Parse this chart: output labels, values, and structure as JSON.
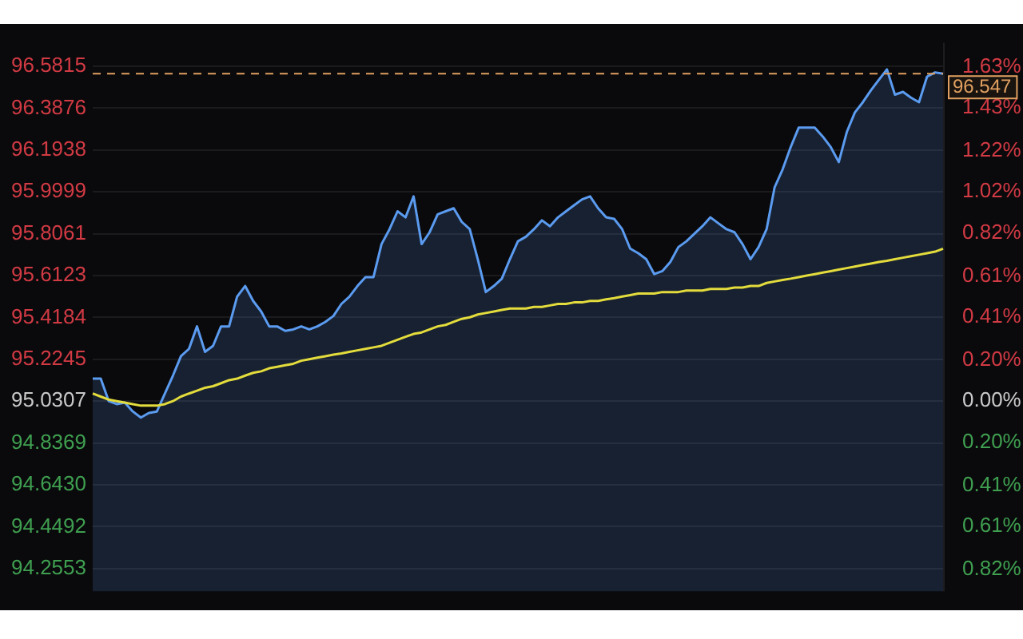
{
  "chart_data": {
    "type": "line",
    "categories": [
      null,
      null,
      null,
      null,
      null,
      null,
      null,
      null,
      null,
      null,
      null,
      null,
      null,
      null,
      null,
      null,
      null,
      null,
      null,
      null,
      null,
      null,
      null,
      null,
      null,
      null,
      null,
      null,
      null,
      null,
      null,
      null,
      null,
      null,
      null,
      null,
      null,
      null,
      null,
      null,
      null,
      null,
      null,
      null,
      null,
      null,
      null,
      null,
      null,
      null,
      null,
      null,
      null,
      null,
      null,
      null,
      null,
      null,
      null,
      null,
      null,
      null,
      null,
      null,
      null,
      null,
      null,
      null,
      null,
      null,
      null,
      null,
      null,
      null,
      null,
      null,
      null,
      null,
      null,
      null,
      null,
      null,
      null,
      null,
      null,
      null,
      null,
      null,
      null,
      null,
      null,
      null,
      null,
      null,
      null,
      null,
      null,
      null,
      null,
      null,
      null,
      null,
      null,
      null,
      null,
      null,
      null
    ],
    "series": [
      {
        "type": "area",
        "color": "#5b9bf0",
        "values": [
          95.135,
          95.135,
          95.031,
          95.017,
          95.024,
          94.983,
          94.955,
          94.976,
          94.983,
          95.066,
          95.149,
          95.239,
          95.273,
          95.377,
          95.259,
          95.287,
          95.377,
          95.377,
          95.515,
          95.564,
          95.495,
          95.446,
          95.377,
          95.377,
          95.356,
          95.363,
          95.377,
          95.363,
          95.377,
          95.398,
          95.425,
          95.481,
          95.515,
          95.564,
          95.605,
          95.605,
          95.758,
          95.827,
          95.91,
          95.882,
          95.979,
          95.758,
          95.813,
          95.896,
          95.91,
          95.924,
          95.861,
          95.827,
          95.688,
          95.536,
          95.564,
          95.598,
          95.688,
          95.771,
          95.792,
          95.827,
          95.868,
          95.841,
          95.882,
          95.91,
          95.938,
          95.965,
          95.979,
          95.924,
          95.882,
          95.875,
          95.827,
          95.737,
          95.716,
          95.688,
          95.619,
          95.633,
          95.675,
          95.744,
          95.771,
          95.806,
          95.841,
          95.882,
          95.854,
          95.827,
          95.813,
          95.758,
          95.688,
          95.744,
          95.827,
          96.021,
          96.104,
          96.207,
          96.297,
          96.297,
          96.297,
          96.256,
          96.207,
          96.138,
          96.277,
          96.367,
          96.415,
          96.47,
          96.519,
          96.567,
          96.45,
          96.463,
          96.436,
          96.415,
          96.533,
          96.553,
          96.547
        ]
      },
      {
        "type": "line",
        "color": "#e3dc3c",
        "values": [
          95.066,
          95.052,
          95.038,
          95.031,
          95.024,
          95.017,
          95.01,
          95.01,
          95.01,
          95.017,
          95.031,
          95.052,
          95.066,
          95.079,
          95.093,
          95.1,
          95.114,
          95.128,
          95.135,
          95.149,
          95.162,
          95.169,
          95.183,
          95.19,
          95.197,
          95.204,
          95.218,
          95.225,
          95.232,
          95.239,
          95.246,
          95.252,
          95.259,
          95.266,
          95.273,
          95.28,
          95.287,
          95.301,
          95.315,
          95.329,
          95.342,
          95.349,
          95.363,
          95.377,
          95.384,
          95.398,
          95.412,
          95.419,
          95.432,
          95.439,
          95.446,
          95.453,
          95.46,
          95.46,
          95.46,
          95.467,
          95.467,
          95.474,
          95.481,
          95.481,
          95.488,
          95.488,
          95.495,
          95.495,
          95.502,
          95.508,
          95.515,
          95.522,
          95.529,
          95.529,
          95.529,
          95.536,
          95.536,
          95.536,
          95.543,
          95.543,
          95.543,
          95.55,
          95.55,
          95.55,
          95.557,
          95.557,
          95.564,
          95.564,
          95.578,
          95.585,
          95.592,
          95.598,
          95.605,
          95.612,
          95.619,
          95.626,
          95.633,
          95.64,
          95.647,
          95.654,
          95.661,
          95.668,
          95.675,
          95.681,
          95.688,
          95.695,
          95.702,
          95.709,
          95.716,
          95.723,
          95.737
        ]
      }
    ],
    "ylim": [
      94.15,
      96.69
    ],
    "yticks": [
      96.5815,
      96.3876,
      96.1938,
      95.9999,
      95.8061,
      95.6123,
      95.4184,
      95.2245,
      95.0307,
      94.8369,
      {
        "value": 94.643,
        "label": "94.6430"
      },
      94.4492,
      94.2553
    ],
    "y2lim": [
      -0.927,
      1.746
    ],
    "y2ticks": [
      {
        "value": 1.63,
        "label": "1.63%"
      },
      {
        "value": 1.43,
        "label": "1.43%"
      },
      {
        "value": 1.22,
        "label": "1.22%"
      },
      {
        "value": 1.02,
        "label": "1.02%"
      },
      {
        "value": 0.82,
        "label": "0.82%"
      },
      {
        "value": 0.61,
        "label": "0.61%"
      },
      {
        "value": 0.41,
        "label": "0.41%"
      },
      {
        "value": 0.2,
        "label": "0.20%"
      },
      {
        "value": 0,
        "label": "0.00%"
      },
      {
        "value": -0.2,
        "label": "0.20%"
      },
      {
        "value": -0.41,
        "label": "0.41%"
      },
      {
        "value": -0.61,
        "label": "0.61%"
      },
      {
        "value": -0.82,
        "label": "0.82%"
      }
    ],
    "ref_lines": [
      {
        "axis": "y",
        "value": 96.547,
        "label": "96.547",
        "color": "#e0a060",
        "line_style": "dashed"
      }
    ],
    "grid": "y",
    "marker": "none",
    "line_style": "solid"
  }
}
